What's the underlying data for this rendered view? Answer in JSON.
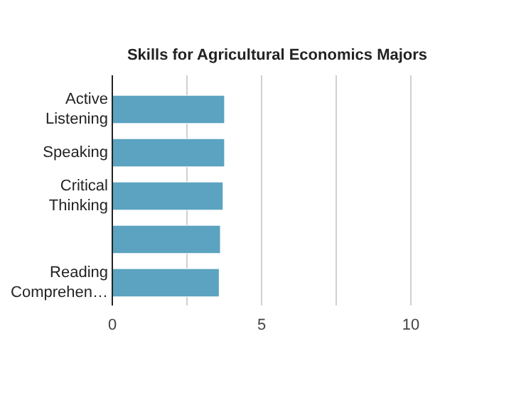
{
  "chart_data": {
    "type": "bar",
    "orientation": "horizontal",
    "title": "Skills for Agricultural Economics Majors",
    "categories": [
      "Active Listening",
      "Speaking",
      "Critical Thinking",
      null,
      "Reading Comprehen…"
    ],
    "values": [
      3.76,
      3.76,
      3.71,
      3.62,
      3.58
    ],
    "color": "#5ba3c0",
    "xlim": [
      0,
      10
    ],
    "xticks": [
      0,
      {
        "value": 2.5,
        "label": null
      },
      5,
      {
        "value": 7.5,
        "label": null
      },
      10
    ],
    "grid": "x"
  }
}
